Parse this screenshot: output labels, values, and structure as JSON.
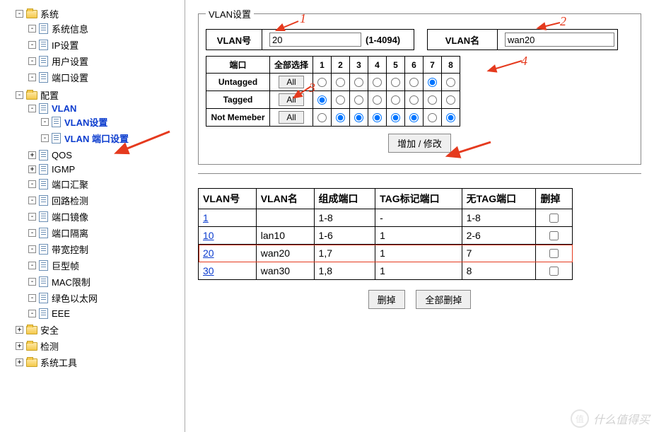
{
  "sidebar": {
    "nodes": [
      {
        "type": "folder",
        "toggle": "-",
        "label": "系统",
        "children": [
          {
            "type": "doc",
            "toggle": "-",
            "label": "系统信息"
          },
          {
            "type": "doc",
            "toggle": "-",
            "label": "IP设置"
          },
          {
            "type": "doc",
            "toggle": "-",
            "label": "用户设置"
          },
          {
            "type": "doc",
            "toggle": "-",
            "label": "端口设置"
          }
        ]
      },
      {
        "type": "folder",
        "toggle": "-",
        "label": "配置",
        "children": [
          {
            "type": "doc",
            "toggle": "-",
            "label": "VLAN",
            "link": true,
            "children": [
              {
                "type": "doc",
                "toggle": "-",
                "label": "VLAN设置",
                "link": true,
                "active": true,
                "arrow": true
              },
              {
                "type": "doc",
                "toggle": "-",
                "label": "VLAN 端口设置",
                "link": true
              }
            ]
          },
          {
            "type": "doc",
            "toggle": "+",
            "label": "QOS"
          },
          {
            "type": "doc",
            "toggle": "+",
            "label": "IGMP"
          },
          {
            "type": "doc",
            "toggle": "-",
            "label": "端口汇聚"
          },
          {
            "type": "doc",
            "toggle": "-",
            "label": "回路检测"
          },
          {
            "type": "doc",
            "toggle": "-",
            "label": "端口镜像"
          },
          {
            "type": "doc",
            "toggle": "-",
            "label": "端口隔离"
          },
          {
            "type": "doc",
            "toggle": "-",
            "label": "带宽控制"
          },
          {
            "type": "doc",
            "toggle": "-",
            "label": "巨型帧"
          },
          {
            "type": "doc",
            "toggle": "-",
            "label": "MAC限制"
          },
          {
            "type": "doc",
            "toggle": "-",
            "label": "绿色以太网"
          },
          {
            "type": "doc",
            "toggle": "-",
            "label": "EEE"
          }
        ]
      },
      {
        "type": "folder",
        "toggle": "+",
        "label": "安全"
      },
      {
        "type": "folder",
        "toggle": "+",
        "label": "检测"
      },
      {
        "type": "folder",
        "toggle": "+",
        "label": "系统工具"
      }
    ]
  },
  "panel": {
    "legend": "VLAN设置",
    "vlan_id_label": "VLAN号",
    "vlan_id_value": "20",
    "vlan_id_range": "(1-4094)",
    "vlan_name_label": "VLAN名",
    "vlan_name_value": "wan20",
    "port_header": "端口",
    "select_all_header": "全部选择",
    "ports": [
      "1",
      "2",
      "3",
      "4",
      "5",
      "6",
      "7",
      "8"
    ],
    "rows": [
      {
        "name": "Untagged",
        "all": "All",
        "sel": [
          false,
          false,
          false,
          false,
          false,
          false,
          true,
          false
        ]
      },
      {
        "name": "Tagged",
        "all": "All",
        "sel": [
          true,
          false,
          false,
          false,
          false,
          false,
          false,
          false
        ]
      },
      {
        "name": "Not Memeber",
        "all": "All",
        "sel": [
          false,
          true,
          true,
          true,
          true,
          true,
          false,
          true
        ]
      }
    ],
    "submit_label": "增加 / 修改"
  },
  "table": {
    "headers": [
      "VLAN号",
      "VLAN名",
      "组成端口",
      "TAG标记端口",
      "无TAG端口",
      "删掉"
    ],
    "rows": [
      {
        "id": "1",
        "name": "",
        "ports": "1-8",
        "tag": "-",
        "untag": "1-8",
        "hl": false
      },
      {
        "id": "10",
        "name": "lan10",
        "ports": "1-6",
        "tag": "1",
        "untag": "2-6",
        "hl": false
      },
      {
        "id": "20",
        "name": "wan20",
        "ports": "1,7",
        "tag": "1",
        "untag": "7",
        "hl": true
      },
      {
        "id": "30",
        "name": "wan30",
        "ports": "1,8",
        "tag": "1",
        "untag": "8",
        "hl": false
      }
    ],
    "del_label": "删掉",
    "del_all_label": "全部删掉"
  },
  "annotations": {
    "n1": "1",
    "n2": "2",
    "n3": "3",
    "n4": "4"
  },
  "colors": {
    "accent": "#e53a1e",
    "link": "#0b3cce"
  },
  "watermark": "什么值得买"
}
